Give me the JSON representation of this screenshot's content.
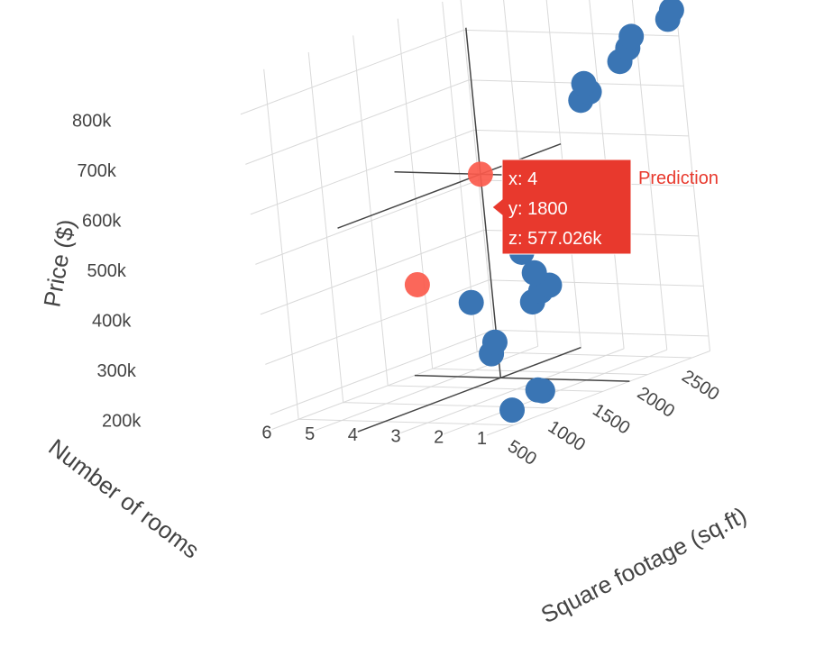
{
  "chart_data": {
    "type": "scatter3d",
    "title": "",
    "axes": {
      "x": {
        "title": "Number of rooms",
        "range": [
          1,
          6
        ],
        "ticks": [
          1,
          2,
          3,
          4,
          5,
          6
        ],
        "tick_labels": [
          "1",
          "2",
          "3",
          "4",
          "5",
          "6"
        ]
      },
      "y": {
        "title": "Square footage (sq.ft)",
        "range": [
          200,
          2700
        ],
        "ticks": [
          500,
          1000,
          1500,
          2000,
          2500
        ],
        "tick_labels": [
          "500",
          "1000",
          "1500",
          "2000",
          "2500"
        ]
      },
      "z": {
        "title": "Price ($)",
        "range": [
          170000,
          870000
        ],
        "ticks": [
          200000,
          300000,
          400000,
          500000,
          600000,
          700000,
          800000
        ],
        "tick_labels": [
          "200k",
          "300k",
          "400k",
          "500k",
          "600k",
          "700k",
          "800k"
        ]
      }
    },
    "series": [
      {
        "color": "#3a75b4",
        "points": [
          {
            "x": 1,
            "y": 500,
            "z": 200000
          },
          {
            "x": 1,
            "y": 800,
            "z": 220000
          },
          {
            "x": 1,
            "y": 850,
            "z": 215000
          },
          {
            "x": 2,
            "y": 800,
            "z": 290000
          },
          {
            "x": 2,
            "y": 850,
            "z": 310000
          },
          {
            "x": 2,
            "y": 1300,
            "z": 360000
          },
          {
            "x": 2,
            "y": 1350,
            "z": 415000
          },
          {
            "x": 2,
            "y": 1400,
            "z": 375000
          },
          {
            "x": 2,
            "y": 1500,
            "z": 380000
          },
          {
            "x": 3,
            "y": 1100,
            "z": 370000
          },
          {
            "x": 3,
            "y": 1700,
            "z": 430000
          },
          {
            "x": 3,
            "y": 1750,
            "z": 480000
          },
          {
            "x": 3,
            "y": 1800,
            "z": 520000
          },
          {
            "x": 3,
            "y": 1850,
            "z": 528000
          },
          {
            "x": 3,
            "y": 1950,
            "z": 540000
          },
          {
            "x": 3,
            "y": 2500,
            "z": 680000
          },
          {
            "x": 3,
            "y": 2600,
            "z": 690000
          },
          {
            "x": 3,
            "y": 2550,
            "z": 710000
          },
          {
            "x": 2,
            "y": 2500,
            "z": 760000
          },
          {
            "x": 2,
            "y": 2600,
            "z": 780000
          },
          {
            "x": 2,
            "y": 2650,
            "z": 800000
          },
          {
            "x": 1,
            "y": 2600,
            "z": 840000
          },
          {
            "x": 1,
            "y": 2650,
            "z": 855000
          }
        ]
      },
      {
        "name": "Prediction",
        "color": "#fb5a4c",
        "points": [
          {
            "x": 4,
            "y": 1800,
            "z": 577026
          },
          {
            "x": 4,
            "y": 1000,
            "z": 410000
          }
        ]
      }
    ],
    "hover": {
      "series_name": "Prediction",
      "lines": [
        "x: 4",
        "y: 1800",
        "z: 577.026k"
      ],
      "color": "#e8392d"
    },
    "colors": {
      "grid": "#d9d9d9",
      "spike": "#444444",
      "axis_text": "#444444"
    }
  }
}
